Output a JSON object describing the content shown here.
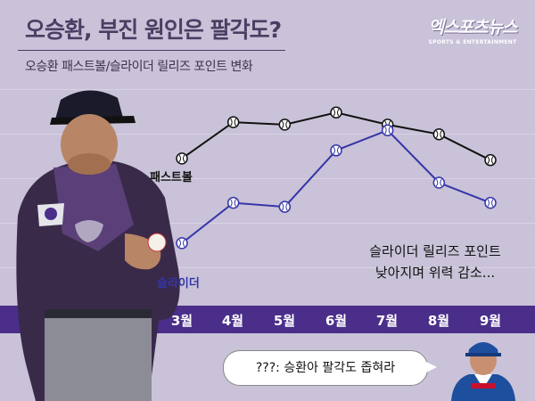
{
  "header": {
    "title": "오승환, 부진 원인은 팔각도?",
    "subtitle": "오승환 패스트볼/슬라이더 릴리즈 포인트 변화"
  },
  "logo": {
    "main": "엑스포츠뉴스",
    "sub": "SPORTS & ENTERTAINMENT"
  },
  "chart_data": {
    "type": "line",
    "title": "오승환 패스트볼/슬라이더 릴리즈 포인트 변화",
    "categories": [
      "3월",
      "4월",
      "5월",
      "6월",
      "7월",
      "8월",
      "9월"
    ],
    "series": [
      {
        "name": "패스트볼",
        "color": "#111111",
        "values": [
          5.85,
          6.3,
          6.27,
          6.42,
          6.27,
          6.15,
          5.83
        ]
      },
      {
        "name": "슬라이더",
        "color": "#3535a8",
        "values": [
          4.8,
          5.3,
          5.25,
          5.95,
          6.2,
          5.55,
          5.3
        ]
      }
    ],
    "ylim": [
      4.5,
      6.6
    ],
    "xlabel": "",
    "ylabel": "",
    "grid": true
  },
  "annotations": {
    "note_line1": "슬라이더 릴리즈 포인트",
    "note_line2": "낮아지며 위력 감소...",
    "speech": "???: 승환아 팔각도 좁혀라"
  }
}
